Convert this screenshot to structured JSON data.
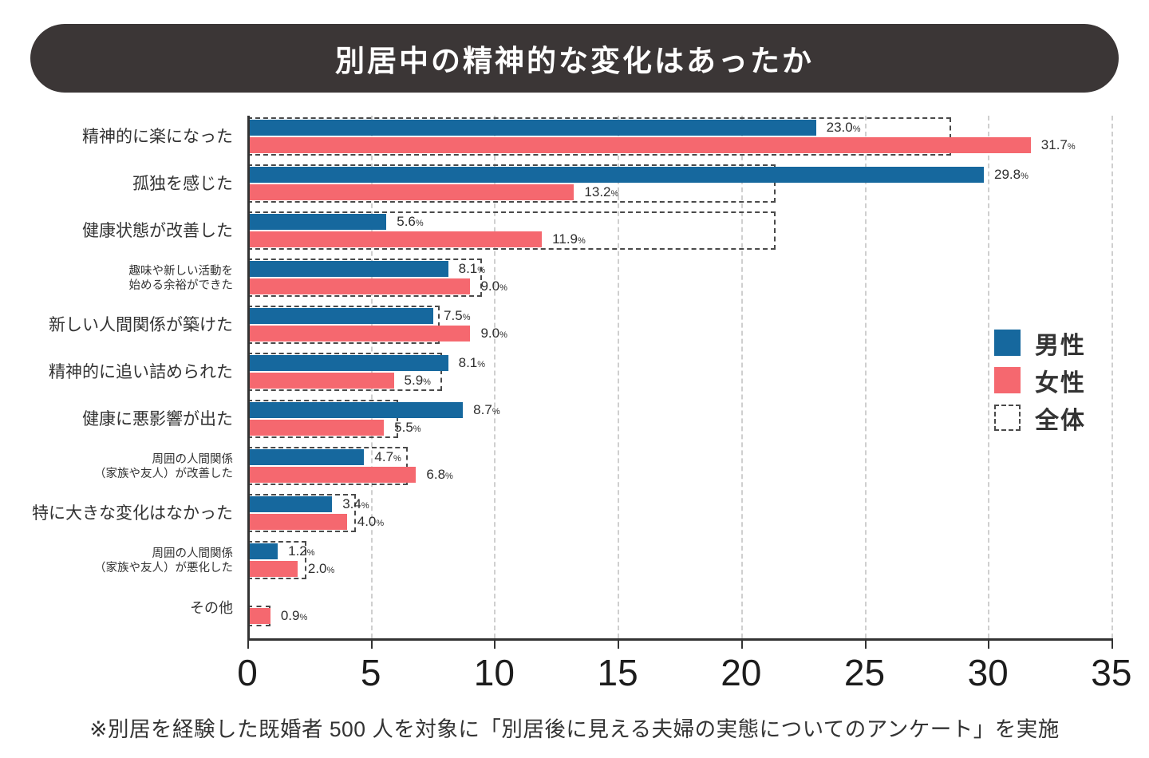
{
  "title": "別居中の精神的な変化はあったか",
  "footnote": "※別居を経験した既婚者 500 人を対象に「別居後に見える夫婦の実態についてのアンケート」を実施",
  "legend": {
    "male": "男性",
    "female": "女性",
    "overall": "全体"
  },
  "colors": {
    "male": "#16689e",
    "female": "#f5686f",
    "title_bg": "#3b3636",
    "overall_dash": "#4a4a4a",
    "grid": "#cfcfcf",
    "text": "#333333"
  },
  "chart_data": {
    "type": "bar",
    "orientation": "horizontal",
    "xlim": [
      0,
      35
    ],
    "x_ticks": [
      "0",
      "5",
      "10",
      "15",
      "20",
      "25",
      "30",
      "35"
    ],
    "grid": "dashed-vertical",
    "legend_position": "right",
    "categories": [
      {
        "lines": [
          "精神的に楽になった"
        ],
        "size": "lg"
      },
      {
        "lines": [
          "孤独を感じた"
        ],
        "size": "lg"
      },
      {
        "lines": [
          "健康状態が改善した"
        ],
        "size": "lg"
      },
      {
        "lines": [
          "趣味や新しい活動を",
          "始める余裕ができた"
        ],
        "size": "sm"
      },
      {
        "lines": [
          "新しい人間関係が築けた"
        ],
        "size": "lg"
      },
      {
        "lines": [
          "精神的に追い詰められた"
        ],
        "size": "lg"
      },
      {
        "lines": [
          "健康に悪影響が出た"
        ],
        "size": "lg"
      },
      {
        "lines": [
          "周囲の人間関係",
          "（家族や友人）が改善した"
        ],
        "size": "sm"
      },
      {
        "lines": [
          "特に大きな変化はなかった"
        ],
        "size": "lg"
      },
      {
        "lines": [
          "周囲の人間関係",
          "（家族や友人）が悪化した"
        ],
        "size": "sm"
      },
      {
        "lines": [
          "その他"
        ],
        "size": "md"
      }
    ],
    "series": [
      {
        "name": "男性",
        "values": [
          23.0,
          29.8,
          5.6,
          8.1,
          7.5,
          8.1,
          8.7,
          4.7,
          3.4,
          1.2,
          null
        ],
        "labels": [
          "23.0%",
          "29.8%",
          "5.6%",
          "8.1%",
          "7.5%",
          "8.1%",
          "8.7%",
          "4.7%",
          "3.4%",
          "1.2%",
          null
        ]
      },
      {
        "name": "女性",
        "values": [
          31.7,
          13.2,
          11.9,
          9.0,
          9.0,
          5.9,
          5.5,
          6.8,
          4.0,
          2.0,
          0.9
        ],
        "labels": [
          "31.7%",
          "13.2%",
          "11.9%",
          "9.0%",
          "9.0%",
          "5.9%",
          "5.5%",
          "6.8%",
          "4.0%",
          "2.0%",
          "0.9%"
        ]
      },
      {
        "name": "全体",
        "style": "dashed-outline",
        "labels_shown": false,
        "values": [
          28.4,
          21.3,
          21.3,
          9.4,
          7.7,
          7.8,
          6.0,
          6.4,
          4.3,
          2.3,
          0.85
        ]
      }
    ]
  }
}
